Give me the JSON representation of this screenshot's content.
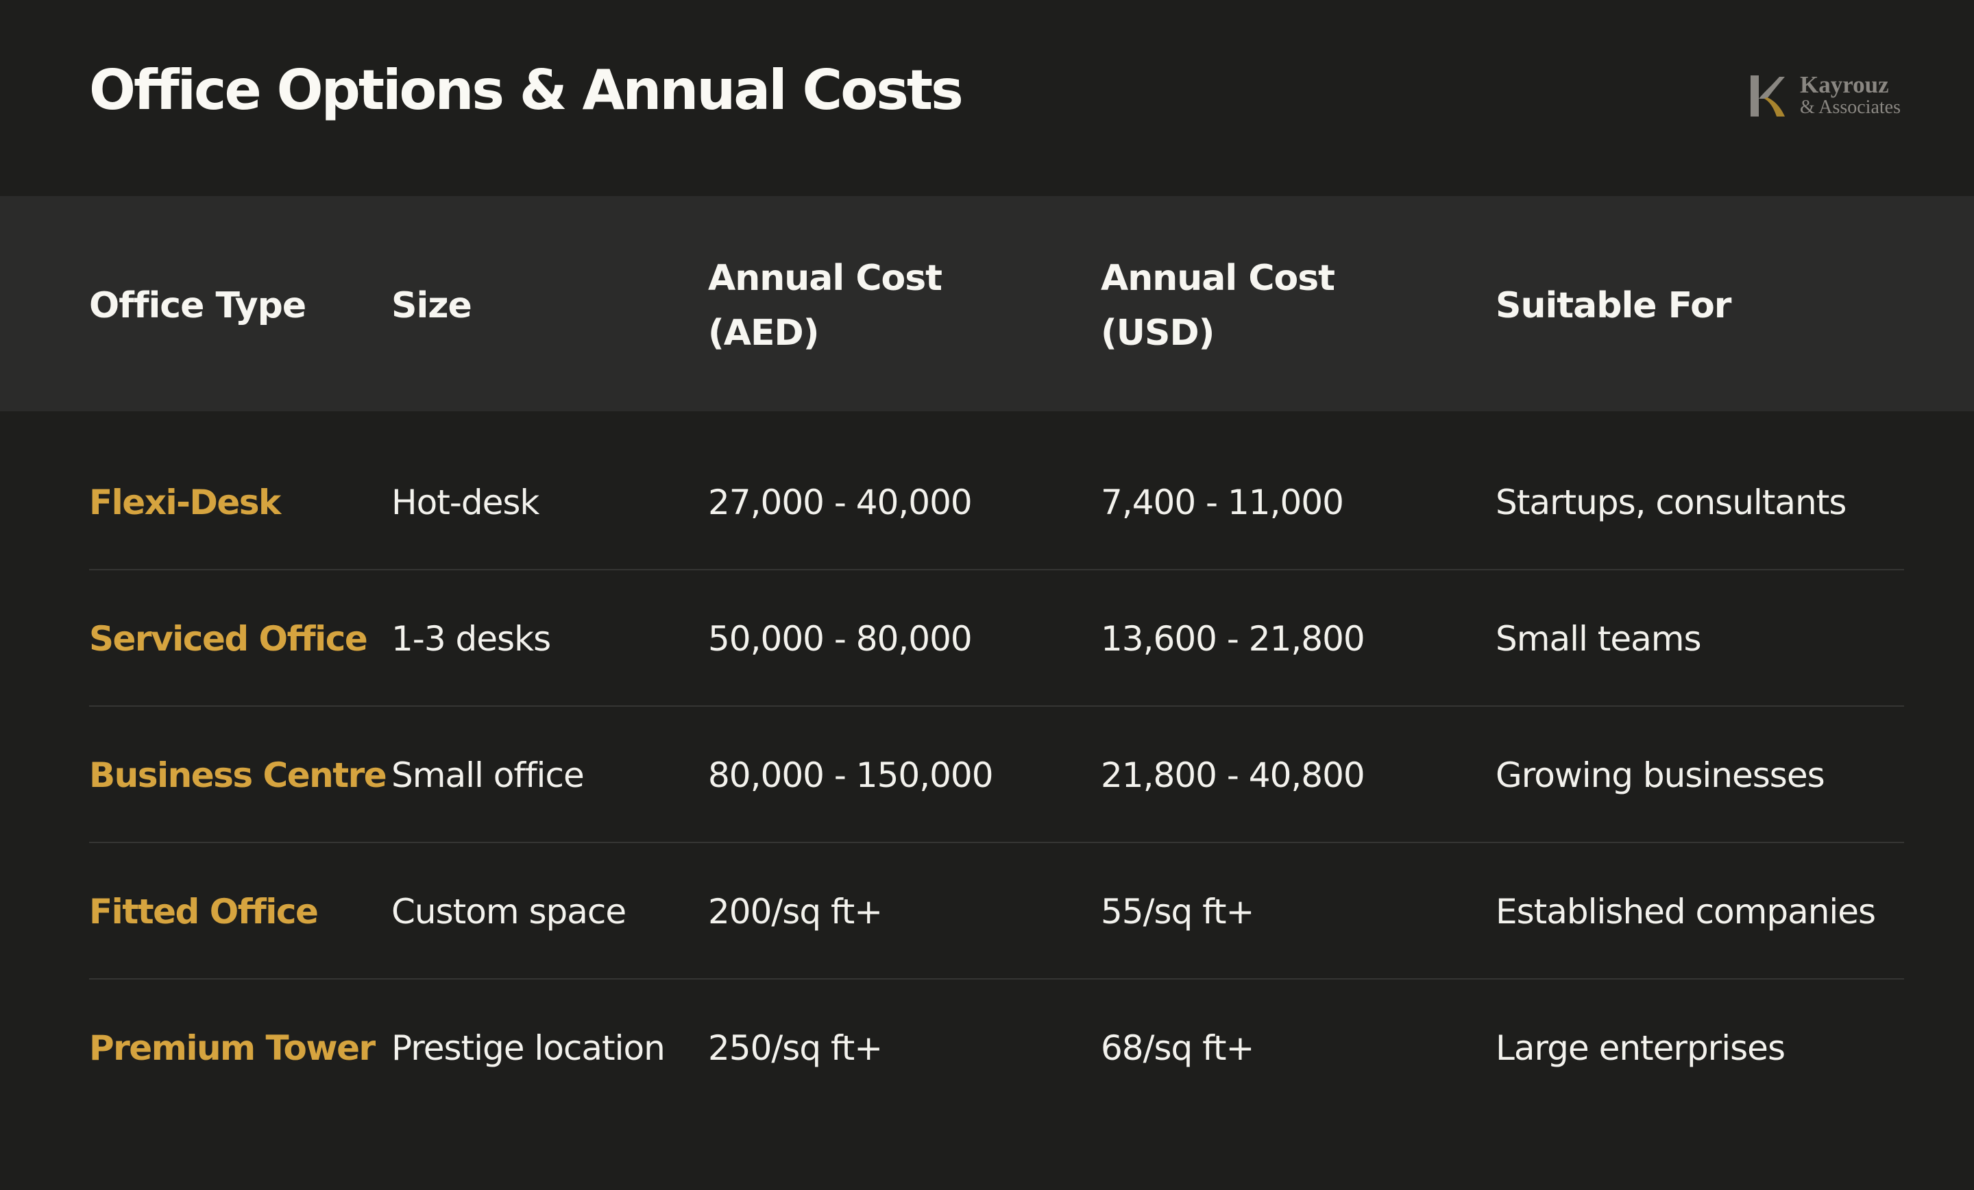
{
  "title": "Office Options & Annual Costs",
  "brand": {
    "name": "Kayrouz",
    "sub": "& Associates",
    "mark_color": "#8a8782",
    "accent_color": "#a8842e"
  },
  "colors": {
    "background": "#1e1e1c",
    "header_band": "#2b2b2a",
    "accent": "#d6a43f",
    "text": "#f3f2ed"
  },
  "chart_data": {
    "type": "table",
    "columns": [
      {
        "line1": "Office Type",
        "line2": ""
      },
      {
        "line1": "Size",
        "line2": ""
      },
      {
        "line1": "Annual Cost",
        "line2": "(AED)"
      },
      {
        "line1": "Annual Cost",
        "line2": "(USD)"
      },
      {
        "line1": "Suitable For",
        "line2": ""
      }
    ],
    "rows": [
      {
        "type": "Flexi-Desk",
        "size": "Hot-desk",
        "aed": "27,000 - 40,000",
        "usd": "7,400 - 11,000",
        "suitable": "Startups, consultants"
      },
      {
        "type": "Serviced Office",
        "size": "1-3 desks",
        "aed": "50,000 - 80,000",
        "usd": "13,600 - 21,800",
        "suitable": "Small teams"
      },
      {
        "type": "Business Centre",
        "size": "Small office",
        "aed": "80,000 - 150,000",
        "usd": "21,800 - 40,800",
        "suitable": "Growing businesses"
      },
      {
        "type": "Fitted Office",
        "size": "Custom space",
        "aed": "200/sq ft+",
        "usd": "55/sq ft+",
        "suitable": "Established companies"
      },
      {
        "type": "Premium Tower",
        "size": "Prestige location",
        "aed": "250/sq ft+",
        "usd": "68/sq ft+",
        "suitable": "Large enterprises"
      }
    ]
  }
}
